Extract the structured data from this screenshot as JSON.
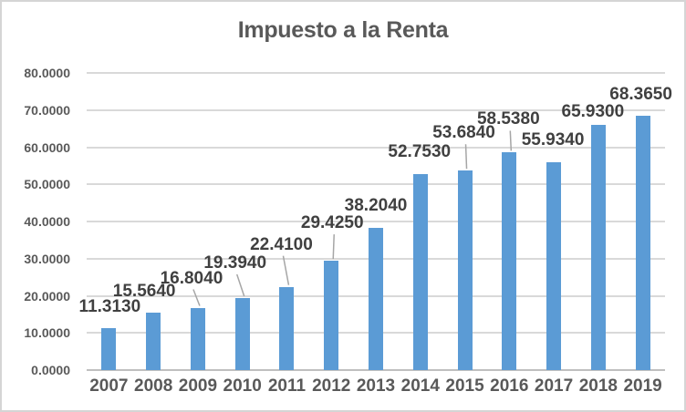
{
  "title": "Impuesto a la Renta",
  "colors": {
    "bar": "#5B9BD5",
    "gridline": "#D9D9D9",
    "axis_line": "#BFBFBF",
    "data_label_text": "#404040",
    "axis_text": "#595959",
    "title_text": "#595959",
    "leader_line": "#A6A6A6",
    "frame_border": "#D5D5D5",
    "background": "#FFFFFF"
  },
  "chart_data": {
    "type": "bar",
    "title": "Impuesto a la Renta",
    "xlabel": "",
    "ylabel": "",
    "categories": [
      "2007",
      "2008",
      "2009",
      "2010",
      "2011",
      "2012",
      "2013",
      "2014",
      "2015",
      "2016",
      "2017",
      "2018",
      "2019"
    ],
    "values": [
      11.313,
      15.564,
      16.804,
      19.394,
      22.41,
      29.425,
      38.204,
      52.753,
      53.684,
      58.538,
      55.934,
      65.93,
      68.365
    ],
    "data_labels": [
      "11.3130",
      "15.5640",
      "16.8040",
      "19.3940",
      "22.4100",
      "29.4250",
      "38.2040",
      "52.7530",
      "53.6840",
      "58.5380",
      "55.9340",
      "65.9300",
      "68.3650"
    ],
    "y_tick_labels": [
      "80.0000",
      "70.0000",
      "60.0000",
      "50.0000",
      "40.0000",
      "30.0000",
      "20.0000",
      "10.0000",
      "0.0000"
    ],
    "ylim": [
      0,
      80
    ],
    "y_step": 10,
    "grid": true,
    "legend": "none",
    "label_layout": [
      {
        "dx": 1,
        "gap": 13,
        "leader": false
      },
      {
        "dx": -10,
        "gap": 13,
        "leader": false
      },
      {
        "dx": -7,
        "gap": 22,
        "leader": true
      },
      {
        "dx": -8,
        "gap": 28,
        "leader": true
      },
      {
        "dx": -6,
        "gap": 36,
        "leader": true
      },
      {
        "dx": 1,
        "gap": 31,
        "leader": true
      },
      {
        "dx": 0,
        "gap": 14,
        "leader": false
      },
      {
        "dx": -1,
        "gap": 14,
        "leader": false
      },
      {
        "dx": -1,
        "gap": 31,
        "leader": true
      },
      {
        "dx": -1,
        "gap": 26,
        "leader": true
      },
      {
        "dx": -1,
        "gap": 14,
        "leader": false
      },
      {
        "dx": -6,
        "gap": 4,
        "leader": false
      },
      {
        "dx": -2,
        "gap": 13,
        "leader": false
      }
    ]
  }
}
